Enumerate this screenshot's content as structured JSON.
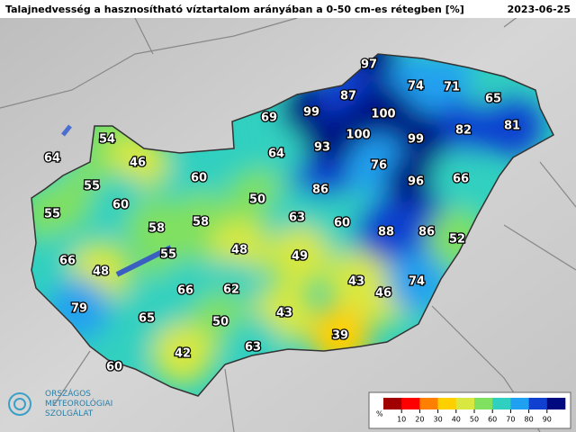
{
  "header": {
    "title": "Talajnedvesség a hasznosítható víztartalom arányában a 0-50 cm-es rétegben [%]",
    "date": "2023-06-25"
  },
  "stations": [
    {
      "value": 97
    },
    {
      "value": 74
    },
    {
      "value": 71
    },
    {
      "value": 65
    },
    {
      "value": 69
    },
    {
      "value": 99
    },
    {
      "value": 87
    },
    {
      "value": 100
    },
    {
      "value": 82
    },
    {
      "value": 81
    },
    {
      "value": 54
    },
    {
      "value": 93
    },
    {
      "value": 100
    },
    {
      "value": 99
    },
    {
      "value": 64
    },
    {
      "value": 46
    },
    {
      "value": 64
    },
    {
      "value": 76
    },
    {
      "value": 60
    },
    {
      "value": 55
    },
    {
      "value": 86
    },
    {
      "value": 96
    },
    {
      "value": 66
    },
    {
      "value": 50
    },
    {
      "value": 60
    },
    {
      "value": 55
    },
    {
      "value": 63
    },
    {
      "value": 60
    },
    {
      "value": 58
    },
    {
      "value": 58
    },
    {
      "value": 88
    },
    {
      "value": 86
    },
    {
      "value": 52
    },
    {
      "value": 48
    },
    {
      "value": 49
    },
    {
      "value": 55
    },
    {
      "value": 66
    },
    {
      "value": 48
    },
    {
      "value": 43
    },
    {
      "value": 46
    },
    {
      "value": 74
    },
    {
      "value": 66
    },
    {
      "value": 62
    },
    {
      "value": 79
    },
    {
      "value": 65
    },
    {
      "value": 43
    },
    {
      "value": 50
    },
    {
      "value": 39
    },
    {
      "value": 63
    },
    {
      "value": 42
    },
    {
      "value": 60
    }
  ],
  "colorbar": {
    "label": "%",
    "lim": [
      0,
      100
    ],
    "ticks": [
      10,
      20,
      30,
      40,
      50,
      60,
      70,
      80,
      90
    ],
    "colors": [
      "#a00000",
      "#ff0000",
      "#ff8000",
      "#ffd000",
      "#d8e840",
      "#80e060",
      "#30d0c0",
      "#20a0f0",
      "#1040d0",
      "#000a80"
    ]
  },
  "logo": {
    "lines": [
      "ORSZÁGOS",
      "METEOROLÓGIAI",
      "SZOLGÁLAT"
    ]
  }
}
